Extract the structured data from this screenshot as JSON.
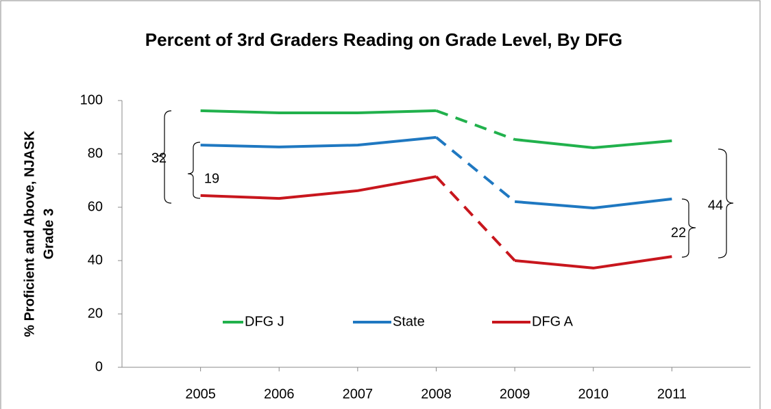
{
  "chart_data": {
    "type": "line",
    "title": "Percent of 3rd Graders Reading on Grade Level, By DFG",
    "y_label": [
      "% Proficient and Above, NJASK",
      "Grade 3"
    ],
    "x": [
      2005,
      2006,
      2007,
      2008,
      2009,
      2010,
      2011
    ],
    "xlim": [
      2004,
      2012
    ],
    "xticks": [
      2005,
      2006,
      2007,
      2008,
      2009,
      2010,
      2011
    ],
    "ylim": [
      0,
      100
    ],
    "yticks": [
      0,
      20,
      40,
      60,
      80,
      100
    ],
    "dashed_between": [
      2008,
      2009
    ],
    "legend": "bottom",
    "series": [
      {
        "name": "DFG J",
        "color": "#21b14c",
        "values": [
          96.2,
          95.4,
          95.4,
          96.2,
          85.4,
          82.3,
          84.9
        ]
      },
      {
        "name": "State",
        "color": "#1f78c1",
        "values": [
          83.3,
          82.6,
          83.3,
          86.2,
          62.1,
          59.7,
          63.1
        ]
      },
      {
        "name": "DFG A",
        "color": "#c8161d",
        "values": [
          64.4,
          63.3,
          66.2,
          71.5,
          40.0,
          37.2,
          41.5
        ]
      }
    ],
    "annotations": [
      "32",
      "19",
      "44",
      "22"
    ]
  }
}
